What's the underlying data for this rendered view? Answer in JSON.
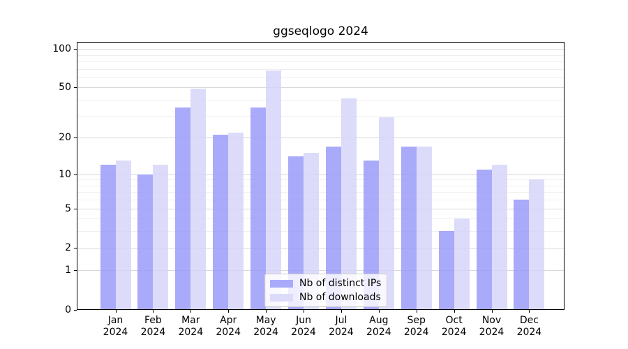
{
  "title": "ggseqlogo 2024",
  "chart_data": {
    "type": "bar",
    "title": "ggseqlogo 2024",
    "categories": [
      "Jan",
      "Feb",
      "Mar",
      "Apr",
      "May",
      "Jun",
      "Jul",
      "Aug",
      "Sep",
      "Oct",
      "Nov",
      "Dec"
    ],
    "category_year": "2024",
    "series": [
      {
        "name": "Nb of distinct IPs",
        "color": "#aaaafa",
        "values": [
          12,
          10,
          35,
          21,
          35,
          14,
          17,
          13,
          17,
          3,
          11,
          6
        ]
      },
      {
        "name": "Nb of downloads",
        "color": "#dcdcfa",
        "values": [
          13,
          12,
          49,
          22,
          68,
          15,
          41,
          29,
          17,
          4,
          12,
          9
        ]
      }
    ],
    "yscale": "log1p",
    "ylim": [
      0,
      114
    ],
    "yticks": [
      0,
      1,
      2,
      5,
      10,
      20,
      50,
      100
    ],
    "minor_yticks": [
      3,
      4,
      6,
      7,
      8,
      9,
      30,
      40,
      60,
      70,
      80,
      90
    ],
    "grid": true,
    "legend_position": "lower center",
    "xlabel": "",
    "ylabel": ""
  },
  "colors": {
    "background": "#ffffff",
    "axis": "#000000",
    "grid_major": "#d8d8d8",
    "grid_minor": "#efefef",
    "legend_border": "#cccccc",
    "legend_background": "rgba(255,255,255,0.8)"
  }
}
